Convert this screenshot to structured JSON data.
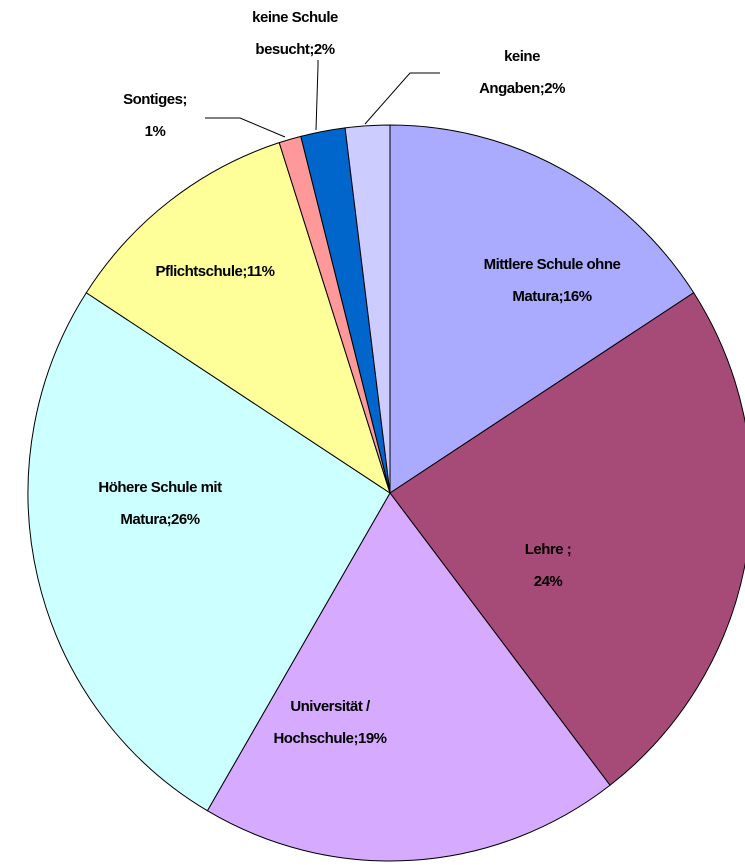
{
  "chart_data": {
    "type": "pie",
    "categories": [
      "Mittlere Schule ohne\nMatura;16%",
      "Lehre ;\n24%",
      "Universität /\nHochschule;19%",
      "Höhere Schule mit\nMatura;26%",
      "Pflichtschule;11%",
      "Sontiges;\n1%",
      "keine Schule\nbesucht;2%",
      "keine\nAngaben;2%"
    ],
    "values": [
      16,
      24,
      19,
      26,
      11,
      1,
      2,
      2
    ],
    "colors": [
      "#aaaaff",
      "#a64a78",
      "#d5aaff",
      "#ccffff",
      "#ffff99",
      "#ff9999",
      "#0066cc",
      "#ccccff"
    ]
  }
}
